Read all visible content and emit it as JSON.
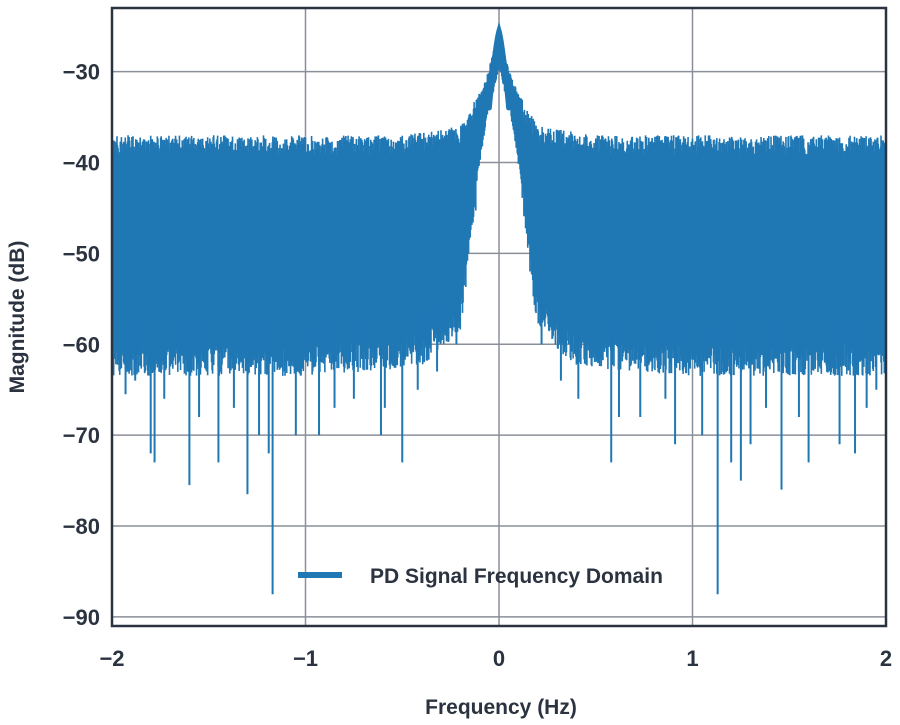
{
  "chart_data": {
    "type": "line",
    "title": "",
    "xlabel": "Frequency (Hz)",
    "ylabel": "Magnitude (dB)",
    "xlim": [
      -2,
      2
    ],
    "ylim": [
      -91,
      -23
    ],
    "x_ticks": [
      -2,
      -1,
      0,
      1,
      2
    ],
    "y_ticks": [
      -30,
      -40,
      -50,
      -60,
      -70,
      -80,
      -90
    ],
    "x_tick_labels": [
      "−2",
      "−1",
      "0",
      "1",
      "2"
    ],
    "y_tick_labels": [
      "−30",
      "−40",
      "−50",
      "−60",
      "−70",
      "−80",
      "−90"
    ],
    "grid": true,
    "legend_position": "bottom-center",
    "series": [
      {
        "name": "PD Signal Frequency Domain",
        "color": "#1f77b4",
        "peak": {
          "x": 0.0,
          "y": -25.5
        },
        "noise_floor_upper_envelope": [
          [
            -2.0,
            -37
          ],
          [
            -1.0,
            -37
          ],
          [
            -0.5,
            -37
          ],
          [
            -0.2,
            -36
          ],
          [
            -0.12,
            -33
          ],
          [
            -0.07,
            -31
          ],
          [
            0.0,
            -25.5
          ],
          [
            0.07,
            -31
          ],
          [
            0.12,
            -33
          ],
          [
            0.2,
            -36
          ],
          [
            0.5,
            -37
          ],
          [
            1.0,
            -37
          ],
          [
            2.0,
            -37
          ]
        ],
        "noise_floor_lower_envelope": [
          [
            -2.0,
            -60
          ],
          [
            -1.0,
            -60
          ],
          [
            -0.4,
            -59
          ],
          [
            -0.2,
            -55
          ],
          [
            -0.12,
            -42
          ],
          [
            -0.06,
            -34
          ],
          [
            0.0,
            -29
          ],
          [
            0.06,
            -34
          ],
          [
            0.12,
            -42
          ],
          [
            0.2,
            -55
          ],
          [
            0.4,
            -59
          ],
          [
            1.0,
            -60
          ],
          [
            2.0,
            -60
          ]
        ],
        "deep_nulls": [
          [
            -1.93,
            -65.5
          ],
          [
            -1.88,
            -64
          ],
          [
            -1.8,
            -72
          ],
          [
            -1.78,
            -73
          ],
          [
            -1.73,
            -66
          ],
          [
            -1.6,
            -75.5
          ],
          [
            -1.55,
            -68
          ],
          [
            -1.45,
            -73
          ],
          [
            -1.37,
            -67
          ],
          [
            -1.3,
            -76.5
          ],
          [
            -1.24,
            -70
          ],
          [
            -1.19,
            -72
          ],
          [
            -1.17,
            -87.5
          ],
          [
            -1.05,
            -70
          ],
          [
            -0.93,
            -70
          ],
          [
            -0.85,
            -67
          ],
          [
            -0.75,
            -66
          ],
          [
            -0.61,
            -70
          ],
          [
            -0.59,
            -67
          ],
          [
            -0.5,
            -73
          ],
          [
            -0.42,
            -65
          ],
          [
            -0.32,
            -63
          ],
          [
            -0.22,
            -60
          ],
          [
            0.22,
            -60
          ],
          [
            0.32,
            -64
          ],
          [
            0.41,
            -66
          ],
          [
            0.58,
            -73
          ],
          [
            0.62,
            -68
          ],
          [
            0.73,
            -68
          ],
          [
            0.86,
            -66
          ],
          [
            0.91,
            -71
          ],
          [
            1.05,
            -70
          ],
          [
            1.13,
            -87.5
          ],
          [
            1.2,
            -73
          ],
          [
            1.25,
            -75
          ],
          [
            1.3,
            -71
          ],
          [
            1.38,
            -67
          ],
          [
            1.46,
            -76
          ],
          [
            1.55,
            -68
          ],
          [
            1.6,
            -73
          ],
          [
            1.76,
            -71
          ],
          [
            1.84,
            -72
          ],
          [
            1.9,
            -67
          ],
          [
            1.95,
            -65
          ]
        ]
      }
    ]
  }
}
